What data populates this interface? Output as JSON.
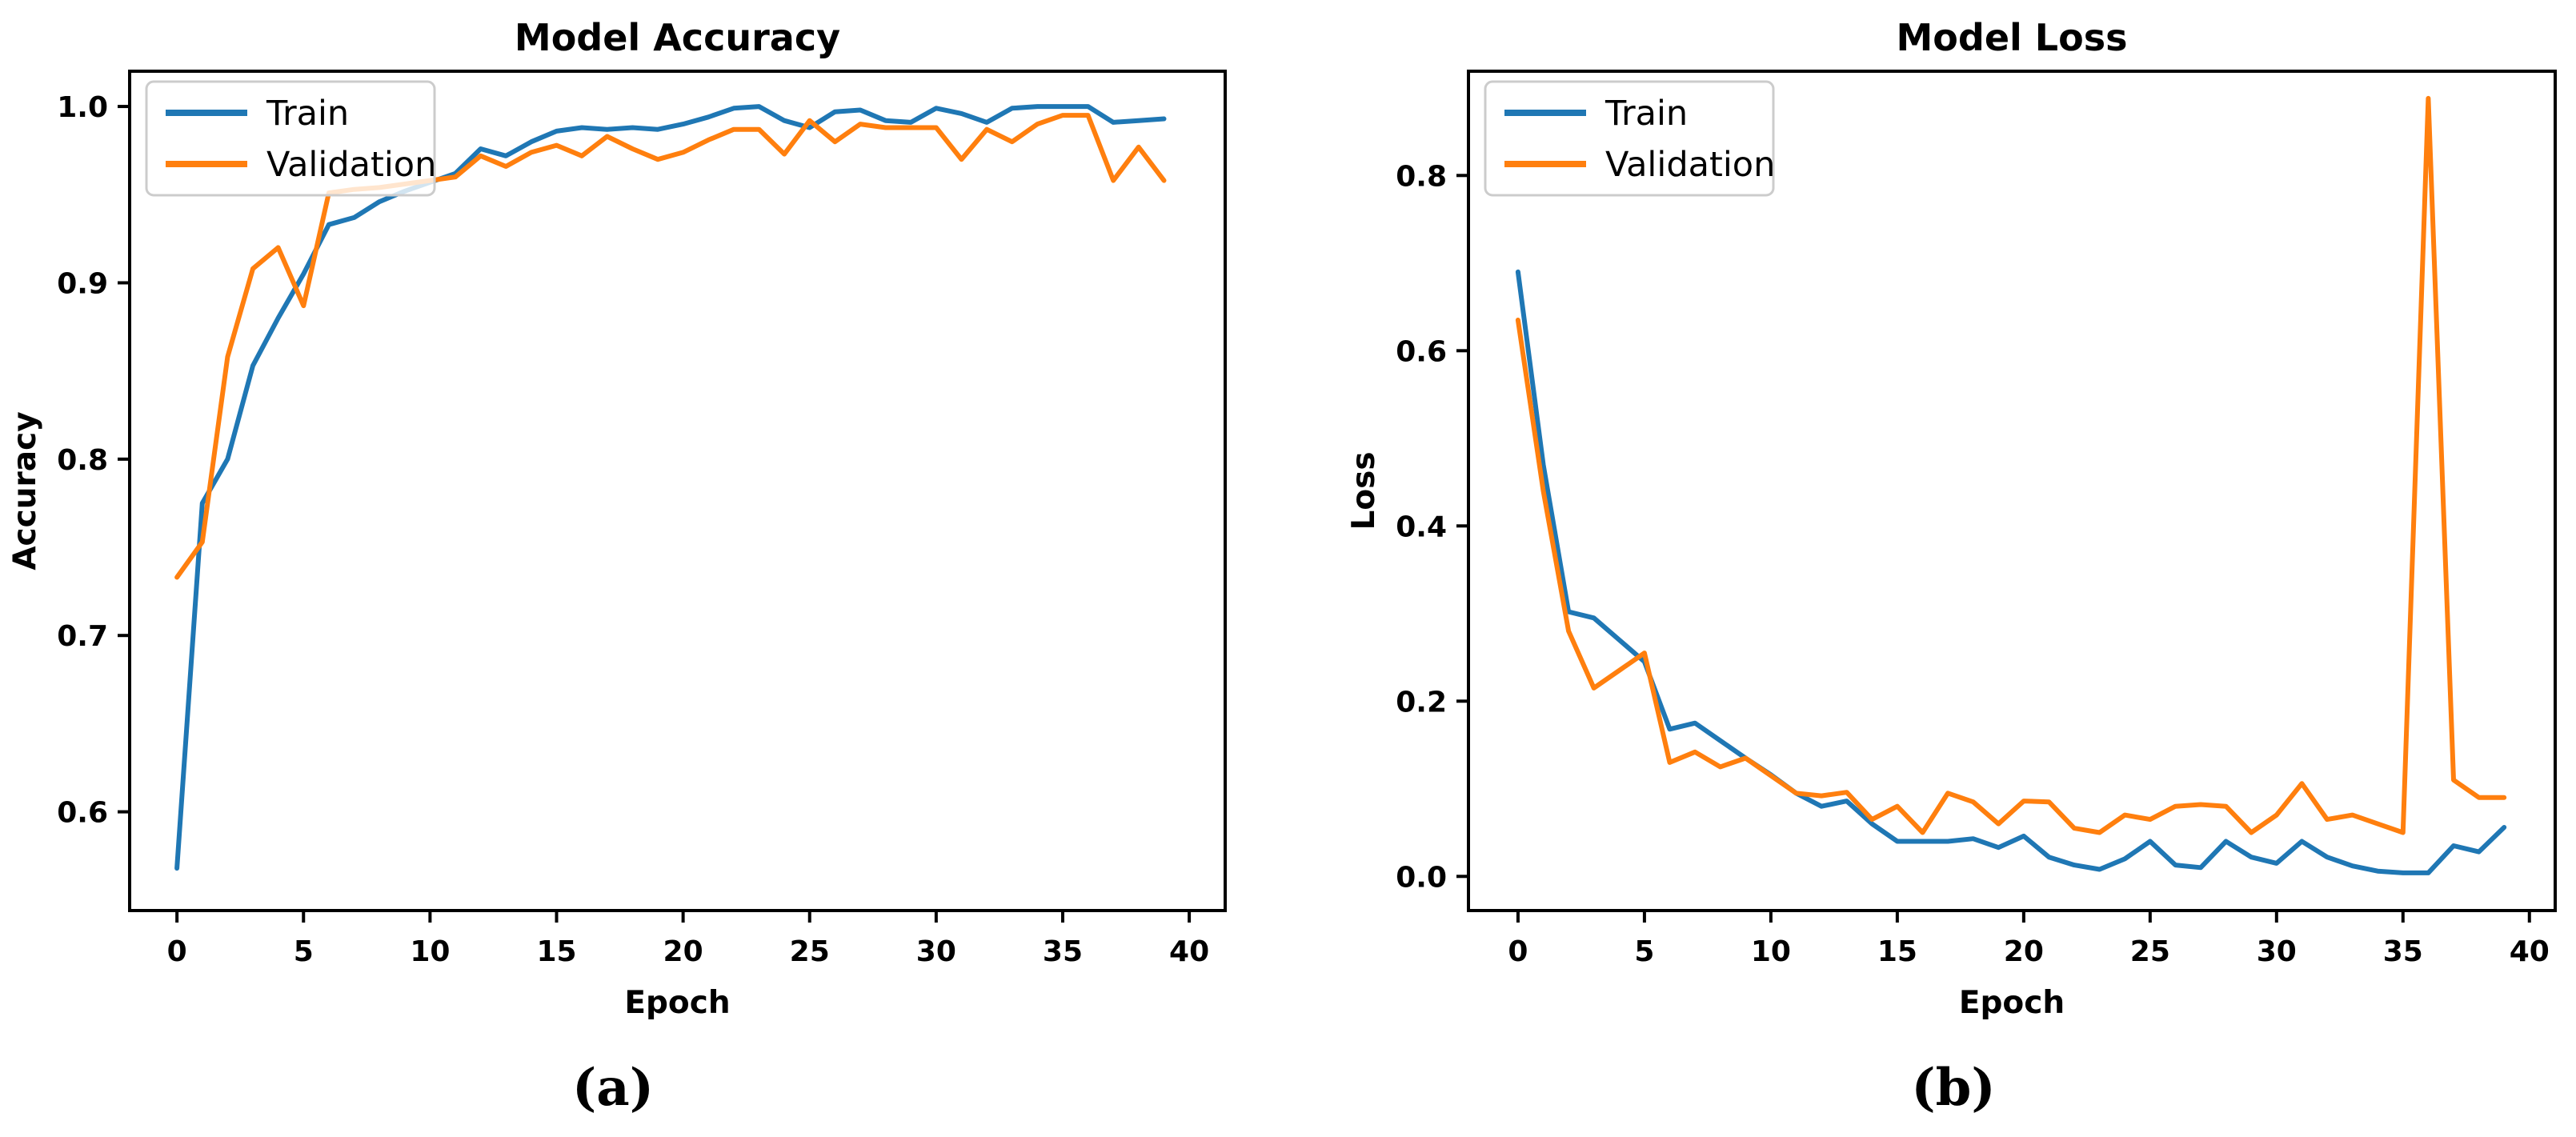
{
  "figure": {
    "background": "#ffffff",
    "text_color": "#000000"
  },
  "colors": {
    "train": "#1f77b4",
    "validation": "#ff7f0e",
    "spine": "#000000",
    "legend_border": "#cccccc",
    "legend_fill": "rgba(255,255,255,0.8)"
  },
  "captions": [
    {
      "label": "(a)"
    },
    {
      "label": "(b)"
    }
  ],
  "chart_data": [
    {
      "type": "line",
      "title": "Model Accuracy",
      "xlabel": "Epoch",
      "ylabel": "Accuracy",
      "grid": false,
      "legend": {
        "position": "upper-left",
        "entries": [
          "Train",
          "Validation"
        ]
      },
      "xlim": [
        -1.87,
        41.42
      ],
      "ylim": [
        0.544,
        1.02
      ],
      "xticks": [
        0,
        5,
        10,
        15,
        20,
        25,
        30,
        35,
        40
      ],
      "xtick_labels": [
        "0",
        "5",
        "10",
        "15",
        "20",
        "25",
        "30",
        "35",
        "40"
      ],
      "yticks": [
        0.6,
        0.7,
        0.8,
        0.9,
        1.0
      ],
      "ytick_labels": [
        "0.6",
        "0.7",
        "0.8",
        "0.9",
        "1.0"
      ],
      "x": [
        0,
        1,
        2,
        3,
        4,
        5,
        6,
        7,
        8,
        9,
        10,
        11,
        12,
        13,
        14,
        15,
        16,
        17,
        18,
        19,
        20,
        21,
        22,
        23,
        24,
        25,
        26,
        27,
        28,
        29,
        30,
        31,
        32,
        33,
        34,
        35,
        36,
        37,
        38,
        39
      ],
      "series": [
        {
          "name": "Train",
          "color": "#1f77b4",
          "values": [
            0.568,
            0.775,
            0.8,
            0.853,
            0.88,
            0.905,
            0.933,
            0.937,
            0.946,
            0.952,
            0.957,
            0.962,
            0.976,
            0.972,
            0.98,
            0.986,
            0.988,
            0.987,
            0.988,
            0.987,
            0.99,
            0.994,
            0.999,
            1.0,
            0.992,
            0.988,
            0.997,
            0.998,
            0.992,
            0.991,
            0.999,
            0.996,
            0.991,
            0.999,
            1.0,
            1.0,
            1.0,
            0.991,
            0.992,
            0.993
          ]
        },
        {
          "name": "Validation",
          "color": "#ff7f0e",
          "values": [
            0.733,
            0.753,
            0.858,
            0.908,
            0.92,
            0.887,
            0.951,
            0.953,
            0.954,
            0.956,
            0.958,
            0.96,
            0.972,
            0.966,
            0.974,
            0.978,
            0.972,
            0.983,
            0.976,
            0.97,
            0.974,
            0.981,
            0.987,
            0.987,
            0.973,
            0.992,
            0.98,
            0.99,
            0.988,
            0.988,
            0.988,
            0.97,
            0.987,
            0.98,
            0.99,
            0.995,
            0.995,
            0.958,
            0.977,
            0.958
          ]
        }
      ]
    },
    {
      "type": "line",
      "title": "Model Loss",
      "xlabel": "Epoch",
      "ylabel": "Loss",
      "grid": false,
      "legend": {
        "position": "upper-left",
        "entries": [
          "Train",
          "Validation"
        ]
      },
      "xlim": [
        -1.96,
        41.02
      ],
      "ylim": [
        -0.039,
        0.919
      ],
      "xticks": [
        0,
        5,
        10,
        15,
        20,
        25,
        30,
        35,
        40
      ],
      "xtick_labels": [
        "0",
        "5",
        "10",
        "15",
        "20",
        "25",
        "30",
        "35",
        "40"
      ],
      "yticks": [
        0.0,
        0.2,
        0.4,
        0.6,
        0.8
      ],
      "ytick_labels": [
        "0.0",
        "0.2",
        "0.4",
        "0.6",
        "0.8"
      ],
      "x": [
        0,
        1,
        2,
        3,
        4,
        5,
        6,
        7,
        8,
        9,
        10,
        11,
        12,
        13,
        14,
        15,
        16,
        17,
        18,
        19,
        20,
        21,
        22,
        23,
        24,
        25,
        26,
        27,
        28,
        29,
        30,
        31,
        32,
        33,
        34,
        35,
        36,
        37,
        38,
        39
      ],
      "series": [
        {
          "name": "Train",
          "color": "#1f77b4",
          "values": [
            0.69,
            0.47,
            0.302,
            0.295,
            0.27,
            0.245,
            0.168,
            0.175,
            0.155,
            0.135,
            0.116,
            0.095,
            0.08,
            0.086,
            0.06,
            0.04,
            0.04,
            0.04,
            0.043,
            0.033,
            0.046,
            0.022,
            0.013,
            0.008,
            0.02,
            0.04,
            0.013,
            0.01,
            0.04,
            0.022,
            0.015,
            0.04,
            0.022,
            0.012,
            0.006,
            0.004,
            0.004,
            0.035,
            0.028,
            0.056
          ]
        },
        {
          "name": "Validation",
          "color": "#ff7f0e",
          "values": [
            0.635,
            0.44,
            0.28,
            0.215,
            0.235,
            0.255,
            0.13,
            0.142,
            0.125,
            0.135,
            0.115,
            0.095,
            0.092,
            0.096,
            0.065,
            0.08,
            0.05,
            0.095,
            0.085,
            0.06,
            0.086,
            0.085,
            0.055,
            0.05,
            0.07,
            0.065,
            0.08,
            0.082,
            0.08,
            0.05,
            0.07,
            0.106,
            0.065,
            0.07,
            0.06,
            0.05,
            0.888,
            0.11,
            0.09,
            0.09
          ]
        }
      ]
    }
  ]
}
